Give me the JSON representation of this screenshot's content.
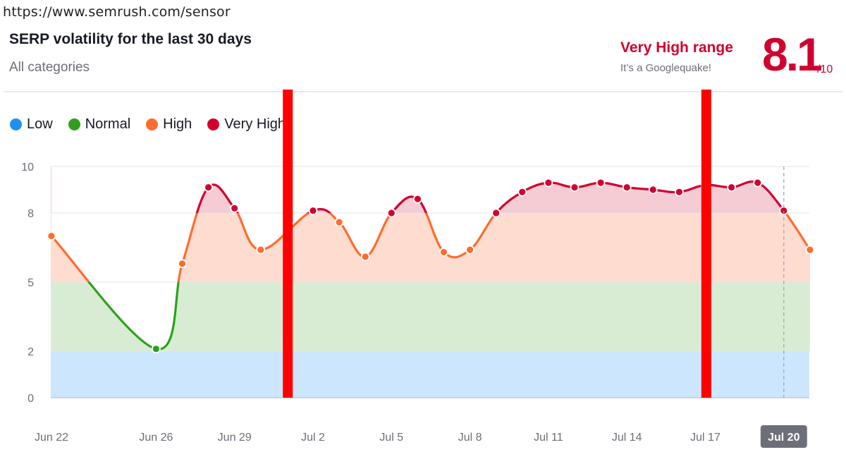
{
  "url_bar": {
    "url": "https://www.semrush.com/sensor"
  },
  "header": {
    "title": "SERP volatility for the last 30 days",
    "subtitle": "All categories"
  },
  "score": {
    "range_label": "Very High range",
    "range_sub": "It’s a Googlequake!",
    "value": "8.1",
    "max": "/10"
  },
  "legend": [
    {
      "label": "Low",
      "color": "#1d91ef"
    },
    {
      "label": "Normal",
      "color": "#2ea11c"
    },
    {
      "label": "High",
      "color": "#ff6c2f"
    },
    {
      "label": "Very High",
      "color": "#d1002f"
    }
  ],
  "chart_data": {
    "type": "line",
    "title": "SERP volatility for the last 30 days",
    "ylim": [
      0,
      10
    ],
    "y_ticks": [
      0,
      2,
      5,
      8,
      10
    ],
    "x_tick_labels": [
      "Jun 22",
      "Jun 26",
      "Jun 29",
      "Jul 2",
      "Jul 5",
      "Jul 8",
      "Jul 11",
      "Jul 14",
      "Jul 17",
      "Jul 20"
    ],
    "x_tick_days": [
      0,
      4,
      7,
      10,
      13,
      16,
      19,
      22,
      25,
      28
    ],
    "selected_label": "Jul 20",
    "bands": [
      {
        "name": "Low",
        "from": 0,
        "to": 2,
        "color": "#cce6fd"
      },
      {
        "name": "Normal",
        "from": 2,
        "to": 5,
        "color": "#d8ecd3"
      },
      {
        "name": "High",
        "from": 5,
        "to": 8,
        "color": "#ffdcd0"
      },
      {
        "name": "Very High",
        "from": 8,
        "to": 10,
        "color": "#f5cbd4"
      }
    ],
    "series": [
      {
        "days": [
          0,
          4,
          5,
          6,
          7,
          8,
          10,
          11,
          12,
          13,
          14,
          15,
          16,
          17,
          18,
          19,
          20,
          21,
          22,
          23,
          24,
          25,
          26,
          27,
          28,
          29
        ],
        "values": [
          7.0,
          2.1,
          5.8,
          9.1,
          8.2,
          6.4,
          8.1,
          7.6,
          6.1,
          8.0,
          8.6,
          6.3,
          6.4,
          8.0,
          8.9,
          9.3,
          9.1,
          9.3,
          9.1,
          9.0,
          8.9,
          9.2,
          9.1,
          9.3,
          8.1,
          6.4
        ]
      }
    ],
    "markers": [
      {
        "day": 9,
        "color": "#ff0000"
      },
      {
        "day": 25,
        "color": "#ff0000"
      }
    ]
  }
}
